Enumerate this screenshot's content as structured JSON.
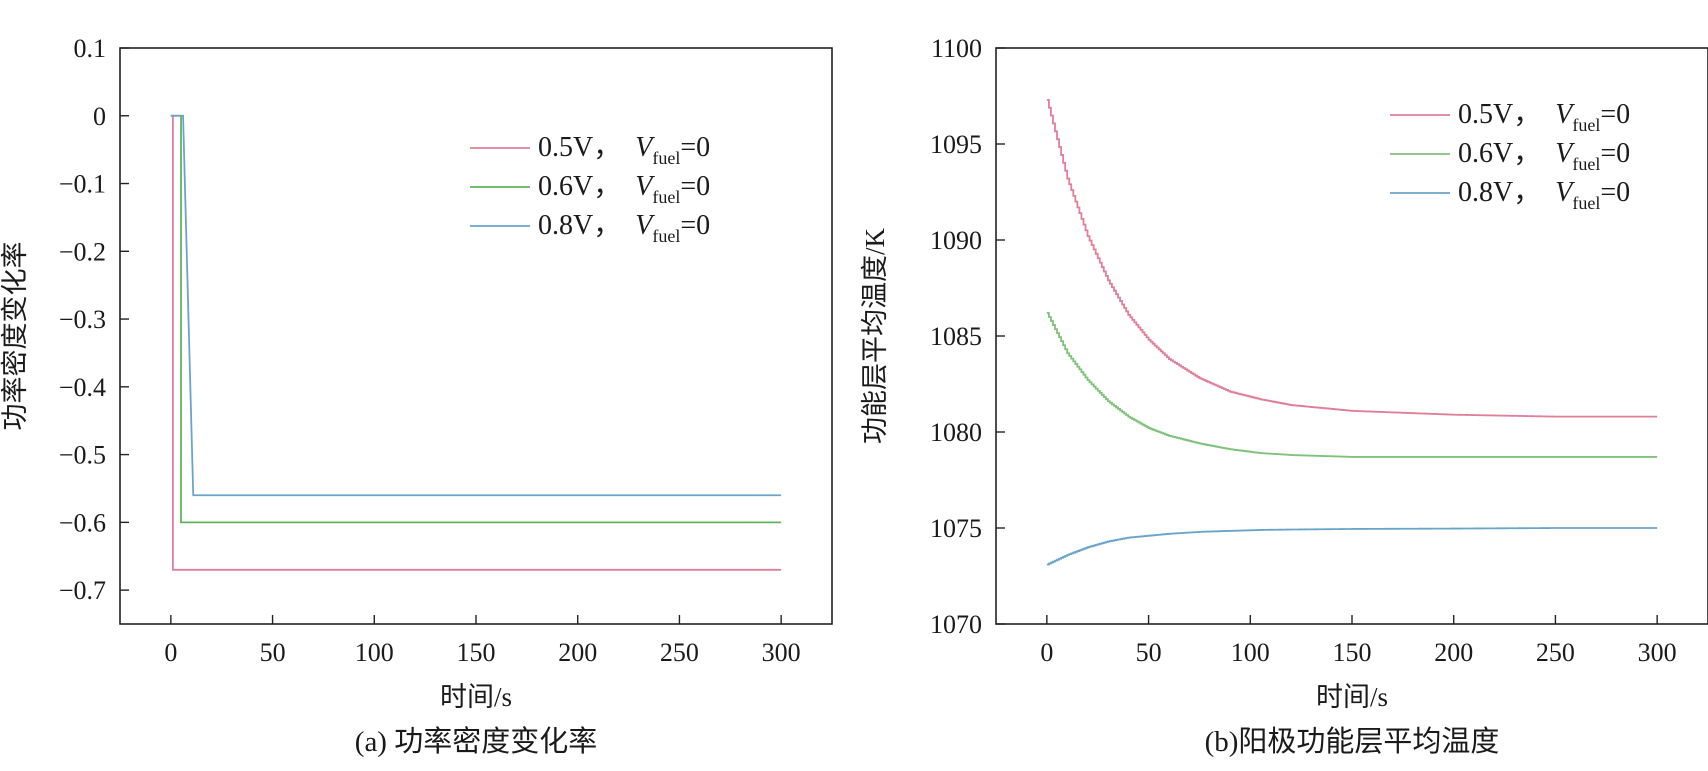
{
  "chart_data": [
    {
      "type": "line",
      "caption": "(a) 功率密度变化率",
      "xlabel": "时间/s",
      "ylabel": "功率密度变化率",
      "xlim": [
        -25,
        325
      ],
      "ylim": [
        -0.75,
        0.1
      ],
      "xticks": [
        0,
        50,
        100,
        150,
        200,
        250,
        300
      ],
      "yticks": [
        0.1,
        0,
        -0.1,
        -0.2,
        -0.3,
        -0.4,
        -0.5,
        -0.6,
        -0.7
      ],
      "xtick_labels": [
        "0",
        "50",
        "100",
        "150",
        "200",
        "250",
        "300"
      ],
      "ytick_labels": [
        "0.1",
        "0",
        "−0.1",
        "−0.2",
        "−0.3",
        "−0.4",
        "−0.5",
        "−0.6",
        "−0.7"
      ],
      "legend_position": "top-right",
      "series": [
        {
          "name_main": "0.5V，",
          "name_var": "V",
          "name_sub": "fuel",
          "name_tail": "=0",
          "color": "#e07f9a",
          "x": [
            0,
            1,
            1,
            300
          ],
          "y": [
            0,
            0,
            -0.67,
            -0.67
          ]
        },
        {
          "name_main": "0.6V，",
          "name_var": "V",
          "name_sub": "fuel",
          "name_tail": "=0",
          "color": "#5fb55a",
          "x": [
            0,
            5,
            5,
            300
          ],
          "y": [
            0,
            0,
            -0.6,
            -0.6
          ]
        },
        {
          "name_main": "0.8V，",
          "name_var": "V",
          "name_sub": "fuel",
          "name_tail": "=0",
          "color": "#6aa5c9",
          "x": [
            0,
            6,
            11,
            300
          ],
          "y": [
            0,
            0,
            -0.56,
            -0.56
          ]
        }
      ]
    },
    {
      "type": "line",
      "caption": "(b)阳极功能层平均温度",
      "xlabel": "时间/s",
      "ylabel": "功能层平均温度/K",
      "xlim": [
        -25,
        325
      ],
      "ylim": [
        1070,
        1100
      ],
      "xticks": [
        0,
        50,
        100,
        150,
        200,
        250,
        300
      ],
      "yticks": [
        1100,
        1095,
        1090,
        1085,
        1080,
        1075,
        1070
      ],
      "xtick_labels": [
        "0",
        "50",
        "100",
        "150",
        "200",
        "250",
        "300"
      ],
      "ytick_labels": [
        "1100",
        "1095",
        "1090",
        "1085",
        "1080",
        "1075",
        "1070"
      ],
      "legend_position": "top-right",
      "series": [
        {
          "name_main": "0.5V，",
          "name_var": "V",
          "name_sub": "fuel",
          "name_tail": "=0",
          "color": "#e07f9a",
          "x": [
            0,
            10,
            20,
            30,
            40,
            50,
            60,
            75,
            90,
            105,
            120,
            150,
            200,
            250,
            300
          ],
          "y": [
            1097.3,
            1093.2,
            1090.2,
            1087.9,
            1086.1,
            1084.8,
            1083.8,
            1082.8,
            1082.1,
            1081.7,
            1081.4,
            1081.1,
            1080.9,
            1080.8,
            1080.8
          ]
        },
        {
          "name_main": "0.6V，",
          "name_var": "V",
          "name_sub": "fuel",
          "name_tail": "=0",
          "color": "#7fc27a",
          "x": [
            0,
            10,
            20,
            30,
            40,
            50,
            60,
            75,
            90,
            105,
            120,
            150,
            200,
            250,
            300
          ],
          "y": [
            1086.2,
            1084.1,
            1082.7,
            1081.6,
            1080.8,
            1080.2,
            1079.8,
            1079.4,
            1079.1,
            1078.9,
            1078.8,
            1078.7,
            1078.7,
            1078.7,
            1078.7
          ]
        },
        {
          "name_main": "0.8V，",
          "name_var": "V",
          "name_sub": "fuel",
          "name_tail": "=0",
          "color": "#6aa5c9",
          "x": [
            0,
            10,
            20,
            30,
            40,
            50,
            60,
            75,
            90,
            105,
            120,
            150,
            200,
            250,
            300
          ],
          "y": [
            1073.1,
            1073.6,
            1074.0,
            1074.3,
            1074.5,
            1074.6,
            1074.7,
            1074.8,
            1074.85,
            1074.9,
            1074.92,
            1074.95,
            1074.97,
            1075.0,
            1075.0
          ]
        }
      ]
    }
  ]
}
